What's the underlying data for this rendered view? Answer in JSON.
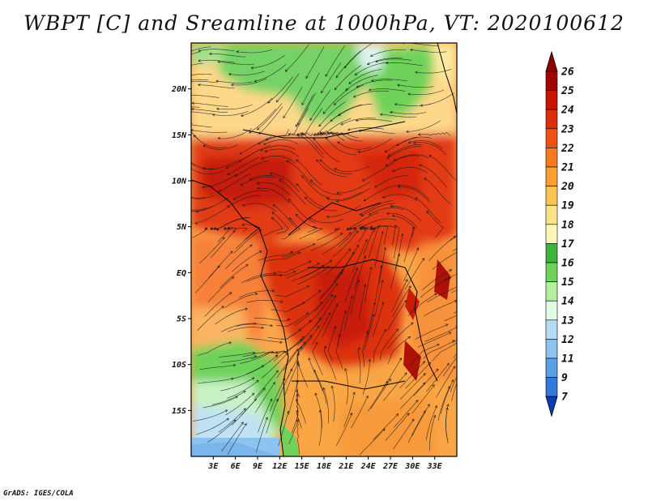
{
  "title": "WBPT [C] and Sreamline at 1000hPa, VT: 2020100612",
  "credit": "GrADS: IGES/COLA",
  "map": {
    "variable": "Wet-bulb potential temperature",
    "units": "C",
    "level": "1000hPa",
    "valid_time": "2020100612",
    "lon_range": [
      0,
      36
    ],
    "lat_range": [
      -20,
      25
    ],
    "lon_ticks": [
      {
        "value": 3,
        "label": "3E"
      },
      {
        "value": 6,
        "label": "6E"
      },
      {
        "value": 9,
        "label": "9E"
      },
      {
        "value": 12,
        "label": "12E"
      },
      {
        "value": 15,
        "label": "15E"
      },
      {
        "value": 18,
        "label": "18E"
      },
      {
        "value": 21,
        "label": "21E"
      },
      {
        "value": 24,
        "label": "24E"
      },
      {
        "value": 27,
        "label": "27E"
      },
      {
        "value": 30,
        "label": "30E"
      },
      {
        "value": 33,
        "label": "33E"
      }
    ],
    "lat_ticks": [
      {
        "value": 20,
        "label": "20N"
      },
      {
        "value": 15,
        "label": "15N"
      },
      {
        "value": 10,
        "label": "10N"
      },
      {
        "value": 5,
        "label": "5N"
      },
      {
        "value": 0,
        "label": "EQ"
      },
      {
        "value": -5,
        "label": "5S"
      },
      {
        "value": -10,
        "label": "10S"
      },
      {
        "value": -15,
        "label": "15S"
      }
    ]
  },
  "colorbar": {
    "levels": [
      {
        "label": "26",
        "color": "#a50000"
      },
      {
        "label": "25",
        "color": "#c81400"
      },
      {
        "label": "24",
        "color": "#de2d0a"
      },
      {
        "label": "23",
        "color": "#f05014"
      },
      {
        "label": "22",
        "color": "#f87a1e"
      },
      {
        "label": "21",
        "color": "#faa02d"
      },
      {
        "label": "20",
        "color": "#fcc350"
      },
      {
        "label": "19",
        "color": "#fde28c"
      },
      {
        "label": "18",
        "color": "#fdf6b4"
      },
      {
        "label": "17",
        "color": "#3cb43c"
      },
      {
        "label": "16",
        "color": "#6ed25a"
      },
      {
        "label": "15",
        "color": "#b4f0a0"
      },
      {
        "label": "14",
        "color": "#e1fae6"
      },
      {
        "label": "13",
        "color": "#b4dcf5"
      },
      {
        "label": "12",
        "color": "#8cc3f0"
      },
      {
        "label": "11",
        "color": "#5aa0e6"
      },
      {
        "label": "9",
        "color": "#3278dc"
      },
      {
        "label": "7",
        "color": "#1450c8"
      }
    ],
    "top_color": "#8c0000",
    "bottom_color": "#0a3cb4"
  }
}
